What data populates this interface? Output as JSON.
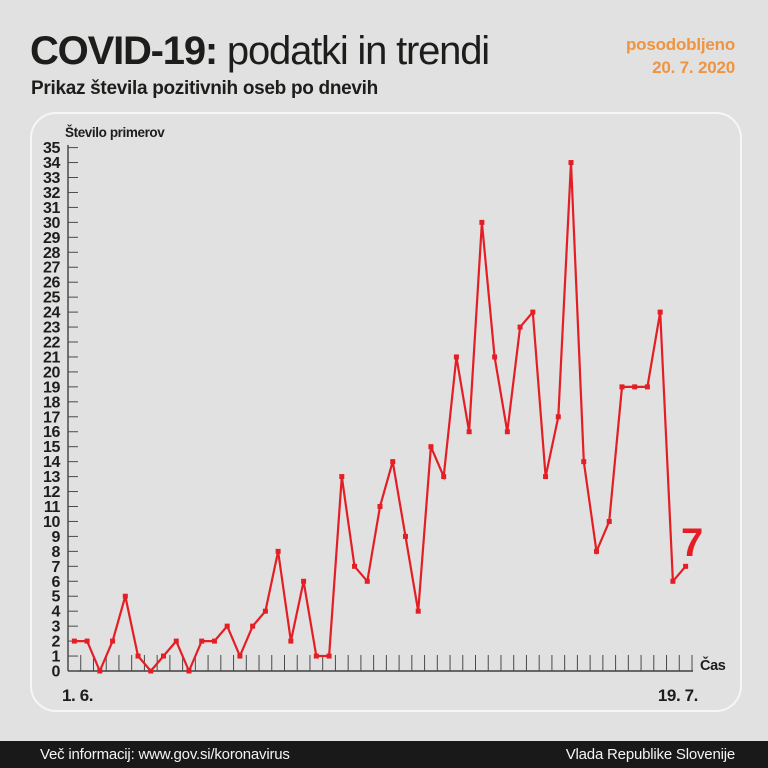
{
  "header": {
    "title_bold": "COVID-19:",
    "title_regular": " podatki in trendi",
    "subtitle": "Prikaz števila pozitivnih oseb po dnevih",
    "updated_line1": "posodobljeno",
    "updated_line2": "20. 7. 2020"
  },
  "chart_data": {
    "type": "line",
    "title": "Število primerov",
    "ylabel": "Število primerov",
    "xlabel": "Čas",
    "x_axis": {
      "start_label": "1. 6.",
      "end_label": "19. 7.",
      "num_points": 49
    },
    "ylim": [
      0,
      35
    ],
    "y_tick_step": 1,
    "grid": false,
    "legend": "none",
    "line_color": "#e41e25",
    "marker": "square",
    "values": [
      2,
      2,
      0,
      2,
      5,
      1,
      0,
      1,
      2,
      0,
      2,
      2,
      3,
      1,
      3,
      4,
      8,
      2,
      6,
      1,
      1,
      13,
      7,
      6,
      11,
      14,
      9,
      4,
      15,
      13,
      21,
      16,
      30,
      21,
      16,
      23,
      24,
      13,
      17,
      34,
      14,
      8,
      10,
      19,
      19,
      19,
      24,
      6,
      7
    ],
    "last_value_label": "7"
  },
  "footer": {
    "left": "Več informacij: www.gov.si/koronavirus",
    "right": "Vlada Republike Slovenije"
  },
  "colors": {
    "page_bg": "#e1e1e1",
    "accent_orange": "#ef9440",
    "line_red": "#e41e25",
    "axis": "#3f3f3f",
    "tick": "#4a4a4a",
    "text_dark": "#1d1d1b",
    "footer_bg": "#191919"
  }
}
